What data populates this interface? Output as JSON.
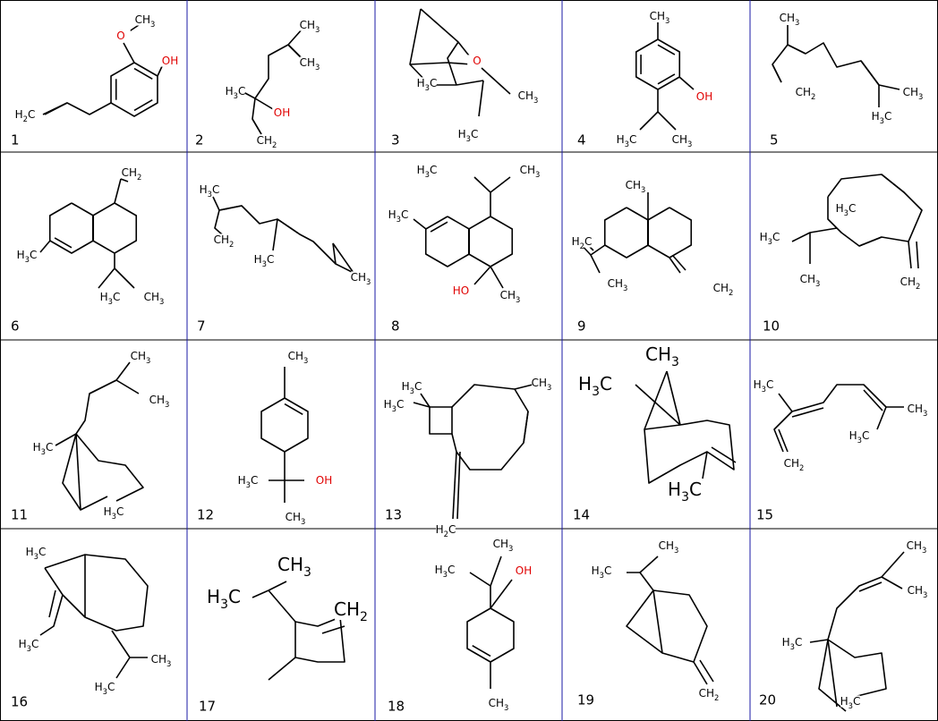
{
  "cells": [
    {
      "number": "1",
      "labels": [
        "O",
        "CH3",
        "OH",
        "H2C"
      ]
    },
    {
      "number": "2",
      "labels": [
        "CH3",
        "CH3",
        "H3C",
        "OH",
        "CH2"
      ]
    },
    {
      "number": "3",
      "labels": [
        "O",
        "H3C",
        "CH3",
        "H3C"
      ]
    },
    {
      "number": "4",
      "labels": [
        "CH3",
        "OH",
        "H3C",
        "CH3"
      ]
    },
    {
      "number": "5",
      "labels": [
        "CH3",
        "CH2",
        "CH3",
        "H3C"
      ]
    },
    {
      "number": "6",
      "labels": [
        "CH2",
        "H3C",
        "H3C",
        "CH3"
      ]
    },
    {
      "number": "7",
      "labels": [
        "H3C",
        "CH2",
        "H3C",
        "CH3"
      ]
    },
    {
      "number": "8",
      "labels": [
        "H3C",
        "CH3",
        "H3C",
        "HO",
        "CH3"
      ]
    },
    {
      "number": "9",
      "labels": [
        "CH3",
        "H2C",
        "CH3",
        "CH2"
      ]
    },
    {
      "number": "10",
      "labels": [
        "H3C",
        "CH3",
        "CH2",
        "H3C"
      ]
    },
    {
      "number": "11",
      "labels": [
        "CH3",
        "CH3",
        "H3C",
        "H3C"
      ]
    },
    {
      "number": "12",
      "labels": [
        "CH3",
        "H3C",
        "OH",
        "CH3"
      ]
    },
    {
      "number": "13",
      "labels": [
        "H3C",
        "H3C",
        "CH3",
        "H2C"
      ]
    },
    {
      "number": "14",
      "labels": [
        "CH3",
        "H3C",
        "H3C"
      ]
    },
    {
      "number": "15",
      "labels": [
        "H3C",
        "CH3",
        "H3C",
        "CH2"
      ]
    },
    {
      "number": "16",
      "labels": [
        "H3C",
        "H3C",
        "CH3",
        "H3C"
      ]
    },
    {
      "number": "17",
      "labels": [
        "CH3",
        "H3C",
        "CH2"
      ]
    },
    {
      "number": "18",
      "labels": [
        "CH3",
        "H3C",
        "OH",
        "CH3"
      ]
    },
    {
      "number": "19",
      "labels": [
        "CH3",
        "H3C",
        "CH2"
      ]
    },
    {
      "number": "20",
      "labels": [
        "CH3",
        "CH3",
        "H3C",
        "H3C"
      ]
    }
  ]
}
